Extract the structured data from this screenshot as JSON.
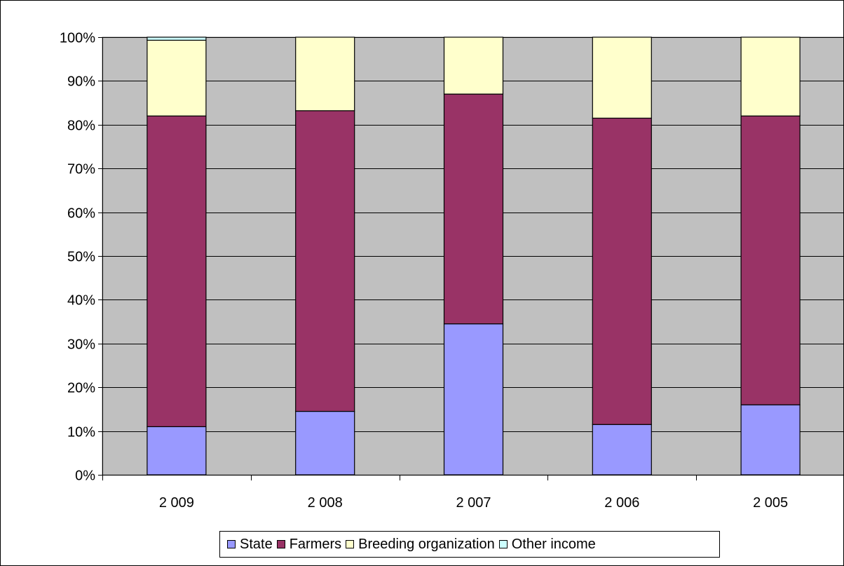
{
  "chart_data": {
    "type": "bar",
    "stacked": true,
    "percent_scale": true,
    "categories": [
      "2 009",
      "2 008",
      "2 007",
      "2 006",
      "2 005"
    ],
    "series": [
      {
        "name": "State",
        "color": "#9999ff",
        "values": [
          11,
          14.5,
          34.5,
          11.5,
          16
        ]
      },
      {
        "name": "Farmers",
        "color": "#993366",
        "values": [
          71,
          68.7,
          52.5,
          70,
          66
        ]
      },
      {
        "name": "Breeding organization",
        "color": "#ffffcc",
        "values": [
          17.3,
          16.8,
          13,
          18.5,
          18
        ]
      },
      {
        "name": "Other income",
        "color": "#ccffff",
        "values": [
          0.7,
          0,
          0,
          0,
          0
        ]
      }
    ],
    "y_ticks": [
      "0%",
      "10%",
      "20%",
      "30%",
      "40%",
      "50%",
      "60%",
      "70%",
      "80%",
      "90%",
      "100%"
    ],
    "ylim": [
      0,
      100
    ],
    "grid": true,
    "plot_background": "#c0c0c0",
    "legend_position": "bottom",
    "title": "",
    "xlabel": "",
    "ylabel": ""
  }
}
